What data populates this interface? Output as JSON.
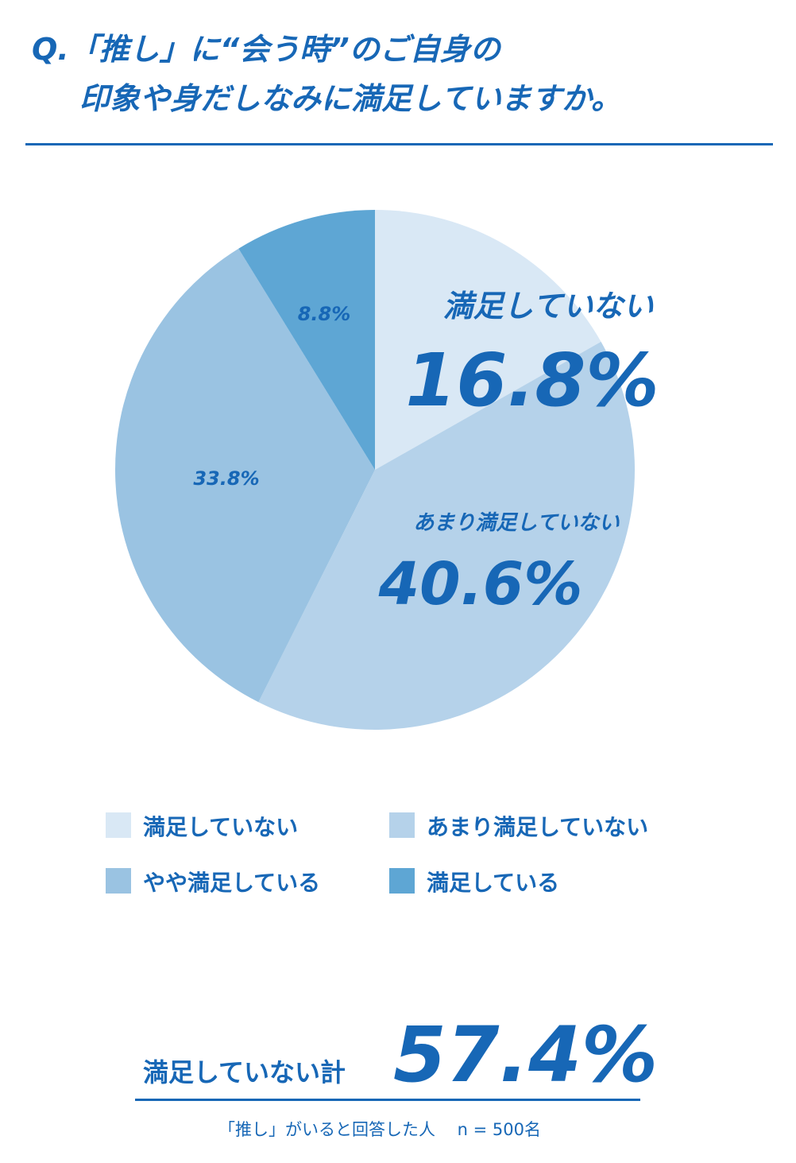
{
  "chart_data": {
    "type": "pie",
    "title": [
      "Q.「推し」に“会う時”のご自身の",
      "印象や身だしなみに満足していますか。"
    ],
    "categories": [
      "満足していない",
      "あまり満足していない",
      "やや満足している",
      "満足している"
    ],
    "values": [
      16.8,
      40.6,
      33.8,
      8.8
    ],
    "value_labels": [
      "16.8%",
      "40.6%",
      "33.8%",
      "8.8%"
    ],
    "colors": [
      "#d9e8f5",
      "#b5d2ea",
      "#9ac3e2",
      "#5ea6d4"
    ],
    "total_label": "満足していない計",
    "total": "57.4%",
    "note": "「推し」がいると回答した人　 n = 500名"
  }
}
